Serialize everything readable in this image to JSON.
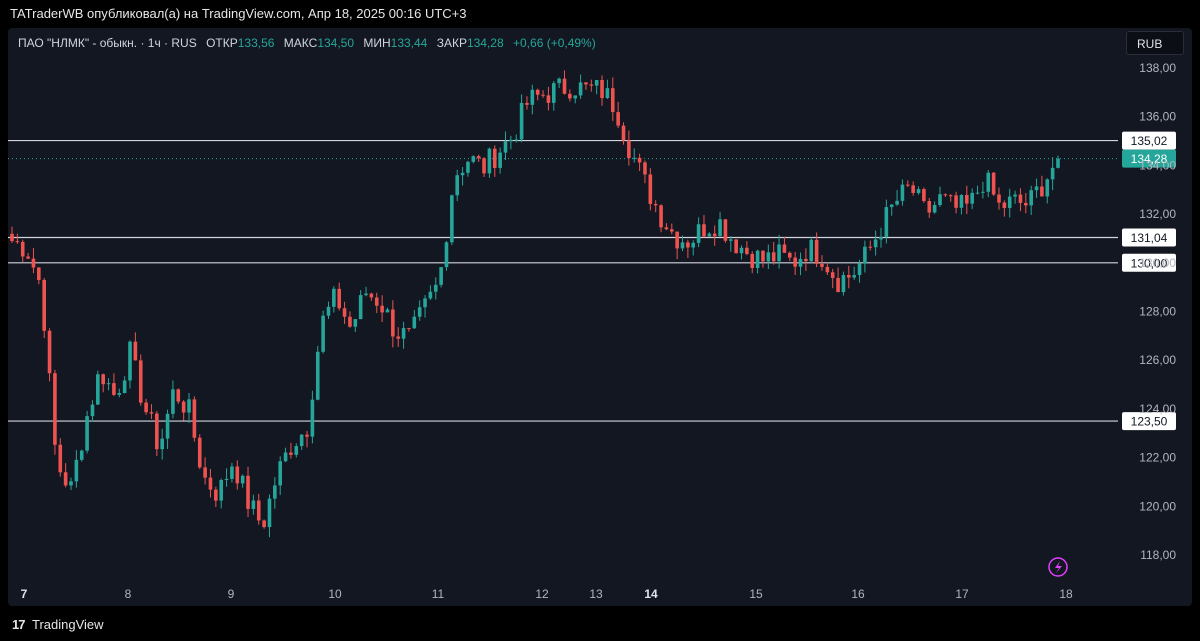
{
  "topbar": {
    "text": "TATraderWB опубликовал(а) на TradingView.com, Апр 18, 2025 00:16 UTC+3"
  },
  "legend": {
    "symbol": "ПАО \"НЛМК\" - обыкн. · 1ч · RUS",
    "open_label": "ОТКР",
    "open": "133,56",
    "high_label": "МАКС",
    "high": "134,50",
    "low_label": "МИН",
    "low": "133,44",
    "close_label": "ЗАКР",
    "close": "134,28",
    "change": "+0,66 (+0,49%)"
  },
  "currency": "RUB",
  "footer": {
    "logo": "17",
    "brand": "TradingView"
  },
  "colors": {
    "up": "#26a69a",
    "down": "#ef5350",
    "bg": "#131722",
    "hline": "#d1d4dc"
  },
  "icons": [
    "lightning-icon",
    "tradingview-logo-icon"
  ],
  "chart_data": {
    "type": "candlestick",
    "ylim": [
      117,
      139
    ],
    "y_ticks": [
      "118,00",
      "120,00",
      "122,00",
      "124,00",
      "126,00",
      "128,00",
      "130,00",
      "132,00",
      "134,00",
      "136,00",
      "138,00"
    ],
    "x_ticks": [
      {
        "label": "7",
        "bold": true
      },
      {
        "label": "8",
        "bold": false
      },
      {
        "label": "9",
        "bold": false
      },
      {
        "label": "10",
        "bold": false
      },
      {
        "label": "11",
        "bold": false
      },
      {
        "label": "12",
        "bold": false
      },
      {
        "label": "13",
        "bold": false
      },
      {
        "label": "14",
        "bold": true
      },
      {
        "label": "15",
        "bold": false
      },
      {
        "label": "16",
        "bold": false
      },
      {
        "label": "17",
        "bold": false
      },
      {
        "label": "18",
        "bold": false
      }
    ],
    "horizontal_levels": [
      "135,02",
      "131,04",
      "130,00",
      "123,50"
    ],
    "last_price": "134,28",
    "key_closes": [
      130.9,
      130.6,
      129.0,
      121.8,
      120.7,
      123.5,
      125.6,
      124.5,
      126.3,
      124.1,
      122.4,
      124.8,
      123.9,
      121.2,
      120.5,
      121.9,
      120.2,
      119.2,
      121.3,
      122.6,
      123.2,
      127.5,
      128.6,
      127.3,
      128.8,
      128.4,
      127.2,
      126.9,
      128.1,
      129.2,
      133.6,
      134.3,
      133.9,
      134.6,
      135.2,
      136.6,
      136.9,
      137.1,
      137.3,
      137.1,
      137.1,
      136.4,
      134.6,
      133.2,
      132.0,
      131.1,
      130.9,
      131.5,
      131.7,
      130.9,
      130.4,
      130.1,
      130.3,
      130.0,
      130.6,
      130.3,
      129.3,
      129.5,
      130.3,
      131.5,
      132.5,
      133.1,
      132.0,
      132.6,
      132.2,
      132.3,
      133.5,
      132.3,
      132.5,
      132.4,
      133.3,
      134.3
    ],
    "candle_count": 196
  }
}
